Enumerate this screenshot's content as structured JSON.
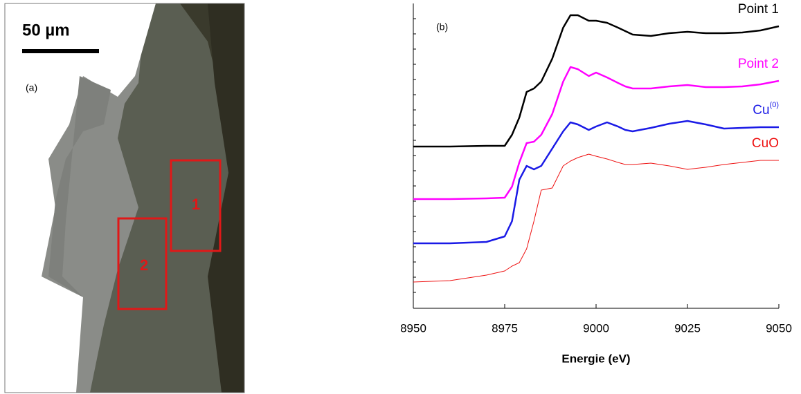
{
  "micrograph": {
    "scale_bar": "50 µm",
    "label": "(a)",
    "regions": [
      "1",
      "2"
    ]
  },
  "chart_data": {
    "type": "line",
    "annotation": "(b)",
    "x_label": "Energie (eV)",
    "x": [
      8950,
      8960,
      8970,
      8975,
      8977,
      8979,
      8981,
      8983,
      8985,
      8988,
      8991,
      8993,
      8995,
      8998,
      9000,
      9003,
      9006,
      9008,
      9010,
      9015,
      9020,
      9025,
      9030,
      9035,
      9040,
      9045,
      9050
    ],
    "xlim": [
      8950,
      9050
    ],
    "xticks": [
      8950,
      8975,
      9000,
      9025,
      9050
    ],
    "ylim": [
      0,
      4.4
    ],
    "series": [
      {
        "name": "Point 1",
        "color": "#000000",
        "width": 2.5,
        "values": [
          2.33,
          2.33,
          2.34,
          2.34,
          2.5,
          2.75,
          3.12,
          3.17,
          3.27,
          3.6,
          4.05,
          4.23,
          4.23,
          4.15,
          4.15,
          4.12,
          4.05,
          4.0,
          3.95,
          3.93,
          3.97,
          3.99,
          3.97,
          3.97,
          3.98,
          4.01,
          4.07
        ]
      },
      {
        "name": "Point 2",
        "color": "#ff00ff",
        "width": 2.5,
        "values": [
          1.57,
          1.57,
          1.58,
          1.59,
          1.75,
          2.1,
          2.38,
          2.4,
          2.5,
          2.8,
          3.27,
          3.48,
          3.45,
          3.35,
          3.4,
          3.33,
          3.25,
          3.2,
          3.17,
          3.17,
          3.2,
          3.22,
          3.19,
          3.19,
          3.2,
          3.23,
          3.28
        ]
      },
      {
        "name": "Cu(0)",
        "color": "#1a1ae6",
        "width": 2.5,
        "values": [
          0.93,
          0.93,
          0.95,
          1.03,
          1.25,
          1.85,
          2.05,
          2.0,
          2.05,
          2.3,
          2.55,
          2.68,
          2.65,
          2.57,
          2.62,
          2.68,
          2.62,
          2.57,
          2.55,
          2.6,
          2.66,
          2.7,
          2.65,
          2.59,
          2.6,
          2.61,
          2.61
        ]
      },
      {
        "name": "CuO",
        "color": "#ee1111",
        "width": 1,
        "values": [
          0.37,
          0.39,
          0.47,
          0.53,
          0.6,
          0.65,
          0.85,
          1.25,
          1.7,
          1.73,
          2.05,
          2.12,
          2.17,
          2.22,
          2.19,
          2.15,
          2.1,
          2.07,
          2.07,
          2.09,
          2.05,
          2.0,
          2.03,
          2.07,
          2.1,
          2.13,
          2.13
        ]
      }
    ]
  }
}
